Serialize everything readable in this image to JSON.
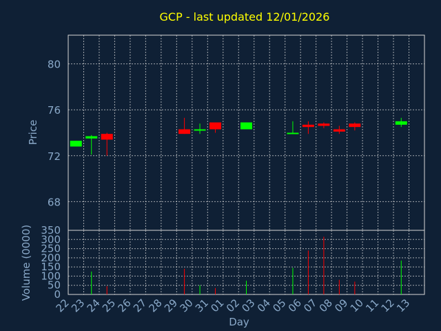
{
  "colors": {
    "background": "#0f2035",
    "up": "#00ff00",
    "down": "#ff0000",
    "title": "#ffff00",
    "axis_text": "#8aa9c9",
    "grid": "#d8d8d8"
  },
  "chart_data": [
    {
      "type": "candlestick",
      "title": "GCP - last updated 12/01/2026",
      "xlabel": "",
      "ylabel": "Price",
      "ylim": [
        65.5,
        82.5
      ],
      "yticks": [
        68,
        72,
        76,
        80
      ],
      "grid": true,
      "days": [
        "22",
        "23",
        "24",
        "25",
        "26",
        "27",
        "28",
        "29",
        "30",
        "31",
        "01",
        "02",
        "03",
        "04",
        "05",
        "06",
        "07",
        "08",
        "09",
        "10",
        "11",
        "12",
        "13"
      ],
      "candles": [
        {
          "day": "22",
          "open": 72.8,
          "close": 73.3,
          "high": 73.3,
          "low": 72.8
        },
        {
          "day": "23",
          "open": 73.5,
          "close": 73.7,
          "high": 73.8,
          "low": 72.1
        },
        {
          "day": "24",
          "open": 73.9,
          "close": 73.4,
          "high": 74.0,
          "low": 72.0
        },
        {
          "day": "29",
          "open": 74.3,
          "close": 73.9,
          "high": 75.3,
          "low": 73.9
        },
        {
          "day": "30",
          "open": 74.2,
          "close": 74.3,
          "high": 74.8,
          "low": 73.9
        },
        {
          "day": "31",
          "open": 74.9,
          "close": 74.3,
          "high": 74.9,
          "low": 74.0
        },
        {
          "day": "02",
          "open": 74.3,
          "close": 74.9,
          "high": 74.9,
          "low": 74.3
        },
        {
          "day": "05",
          "open": 73.9,
          "close": 74.0,
          "high": 75.0,
          "low": 73.9
        },
        {
          "day": "06",
          "open": 74.7,
          "close": 74.5,
          "high": 75.0,
          "low": 73.9
        },
        {
          "day": "07",
          "open": 74.8,
          "close": 74.6,
          "high": 74.9,
          "low": 74.4
        },
        {
          "day": "08",
          "open": 74.3,
          "close": 74.1,
          "high": 74.6,
          "low": 73.9
        },
        {
          "day": "09",
          "open": 74.8,
          "close": 74.5,
          "high": 74.9,
          "low": 74.2
        },
        {
          "day": "12",
          "open": 74.7,
          "close": 75.0,
          "high": 75.3,
          "low": 74.5
        }
      ]
    },
    {
      "type": "bar",
      "title": "",
      "xlabel": "Day",
      "ylabel": "Volume (0000)",
      "ylim": [
        0,
        350
      ],
      "yticks": [
        0,
        50,
        100,
        150,
        200,
        250,
        300,
        350
      ],
      "grid": true,
      "categories": [
        "22",
        "23",
        "24",
        "29",
        "30",
        "31",
        "02",
        "05",
        "06",
        "07",
        "08",
        "09",
        "12"
      ],
      "values": [
        0,
        125,
        45,
        140,
        50,
        35,
        75,
        145,
        240,
        315,
        80,
        70,
        185
      ],
      "bar_colors": [
        "up",
        "up",
        "down",
        "down",
        "up",
        "down",
        "up",
        "up",
        "down",
        "down",
        "down",
        "down",
        "up"
      ]
    }
  ]
}
